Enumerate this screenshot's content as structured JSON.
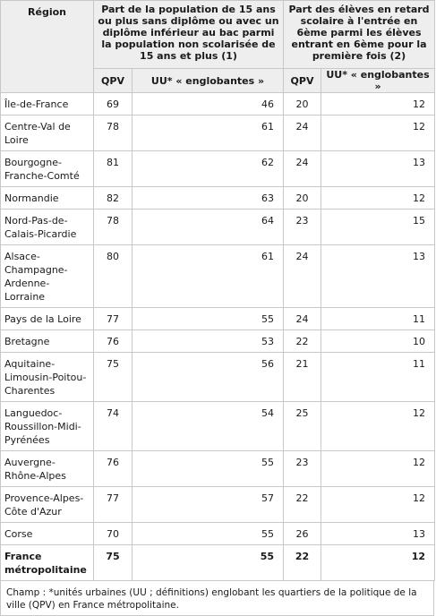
{
  "headers": {
    "region": "Région",
    "group1": "Part de la population de 15 ans ou plus sans diplôme ou avec un diplôme inférieur au bac parmi la population non scolarisée de 15 ans et plus (1)",
    "group2": "Part des élèves en retard scolaire à l'entrée en 6ème parmi les élèves entrant en 6ème pour la première fois (2)",
    "qpv": "QPV",
    "uu1": "UU* « englobantes »",
    "uu2": "UU* « englobantes »"
  },
  "rows": [
    {
      "region": "Île-de-France",
      "qpv1": "69",
      "uu1": "46",
      "qpv2": "20",
      "uu2": "12"
    },
    {
      "region": "Centre-Val de Loire",
      "qpv1": "78",
      "uu1": "61",
      "qpv2": "24",
      "uu2": "12"
    },
    {
      "region": "Bourgogne-Franche-Comté",
      "qpv1": "81",
      "uu1": "62",
      "qpv2": "24",
      "uu2": "13"
    },
    {
      "region": "Normandie",
      "qpv1": "82",
      "uu1": "63",
      "qpv2": "20",
      "uu2": "12"
    },
    {
      "region": "Nord-Pas-de-Calais-Picardie",
      "qpv1": "78",
      "uu1": "64",
      "qpv2": "23",
      "uu2": "15"
    },
    {
      "region": "Alsace-Champagne-Ardenne-Lorraine",
      "qpv1": "80",
      "uu1": "61",
      "qpv2": "24",
      "uu2": "13"
    },
    {
      "region": "Pays de la Loire",
      "qpv1": "77",
      "uu1": "55",
      "qpv2": "24",
      "uu2": "11"
    },
    {
      "region": "Bretagne",
      "qpv1": "76",
      "uu1": "53",
      "qpv2": "22",
      "uu2": "10"
    },
    {
      "region": "Aquitaine-Limousin-Poitou-Charentes",
      "qpv1": "75",
      "uu1": "56",
      "qpv2": "21",
      "uu2": "11"
    },
    {
      "region": "Languedoc-Roussillon-Midi-Pyrénées",
      "qpv1": "74",
      "uu1": "54",
      "qpv2": "25",
      "uu2": "12"
    },
    {
      "region": "Auvergne-Rhône-Alpes",
      "qpv1": "76",
      "uu1": "55",
      "qpv2": "23",
      "uu2": "12"
    },
    {
      "region": "Provence-Alpes-Côte d'Azur",
      "qpv1": "77",
      "uu1": "57",
      "qpv2": "22",
      "uu2": "12"
    },
    {
      "region": "Corse",
      "qpv1": "70",
      "uu1": "55",
      "qpv2": "26",
      "uu2": "13"
    }
  ],
  "total": {
    "region": "France métropolitaine",
    "qpv1": "75",
    "uu1": "55",
    "qpv2": "22",
    "uu2": "12"
  },
  "note": "Champ : *unités urbaines (UU ; définitions) englobant les quartiers de la politique de la ville (QPV) en France métropolitaine."
}
